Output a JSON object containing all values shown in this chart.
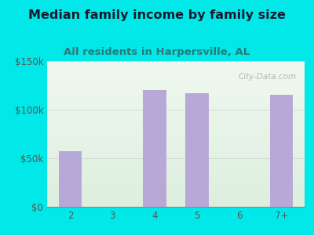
{
  "title": "Median family income by family size",
  "subtitle": "All residents in Harpersville, AL",
  "categories": [
    "2",
    "3",
    "4",
    "5",
    "6",
    "7+"
  ],
  "values": [
    57000,
    0,
    120000,
    117000,
    0,
    115000
  ],
  "bar_color": "#b8a8d8",
  "background_color": "#00e8e8",
  "plot_bg_top": "#f0f8f0",
  "plot_bg_bottom": "#dceedd",
  "title_color": "#1a1a2e",
  "subtitle_color": "#2a7a7a",
  "tick_label_color": "#555555",
  "ylim": [
    0,
    150000
  ],
  "yticks": [
    0,
    50000,
    100000,
    150000
  ],
  "ytick_labels": [
    "$0",
    "$50k",
    "$100k",
    "$150k"
  ],
  "watermark": "City-Data.com",
  "title_fontsize": 11.5,
  "subtitle_fontsize": 9.5,
  "tick_fontsize": 8.5
}
